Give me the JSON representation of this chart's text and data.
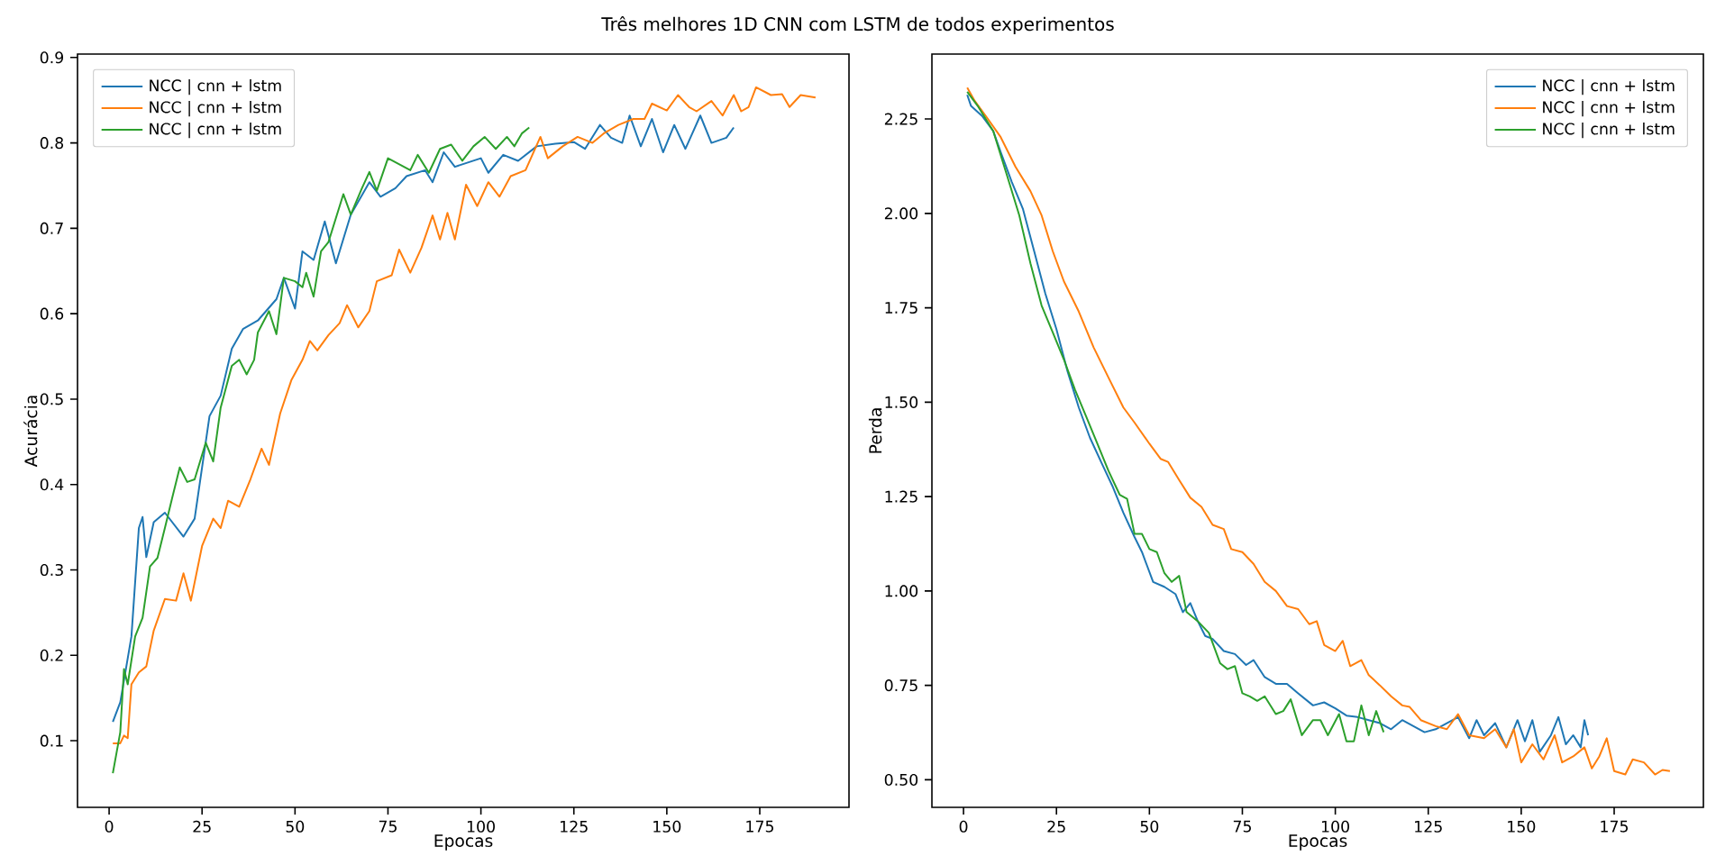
{
  "chart_data": [
    {
      "type": "line",
      "title": "Três melhores 1D CNN com LSTM de todos experimentos",
      "xlabel": "Epocas",
      "ylabel": "Acurácia",
      "legend": "top left",
      "grid": false,
      "xlim": [
        -8.5,
        199
      ],
      "ylim": [
        0.022,
        0.904
      ],
      "xticks": [
        0,
        25,
        50,
        75,
        100,
        125,
        150,
        175
      ],
      "yticks": [
        {
          "value": 0.1,
          "label": "0.1"
        },
        {
          "value": 0.2,
          "label": "0.2"
        },
        {
          "value": 0.3,
          "label": "0.3"
        },
        {
          "value": 0.4,
          "label": "0.4"
        },
        {
          "value": 0.5,
          "label": "0.5"
        },
        {
          "value": 0.6,
          "label": "0.6"
        },
        {
          "value": 0.7,
          "label": "0.7"
        },
        {
          "value": 0.8,
          "label": "0.8"
        },
        {
          "value": 0.9,
          "label": "0.9"
        }
      ],
      "series": [
        {
          "name": "NCC |  cnn + lstm",
          "color": "#1f77b4",
          "x": [
            1,
            3,
            6,
            8,
            9,
            10,
            12,
            15,
            20,
            23,
            27,
            30,
            33,
            36,
            40,
            45,
            47,
            50,
            52,
            55,
            58,
            61,
            65,
            70,
            73,
            77,
            80,
            85,
            87,
            90,
            93,
            100,
            102,
            106,
            110,
            115,
            120,
            125,
            128,
            132,
            135,
            138,
            140,
            143,
            146,
            149,
            152,
            155,
            159,
            162,
            166,
            168
          ],
          "values": [
            0.122,
            0.145,
            0.222,
            0.349,
            0.362,
            0.315,
            0.356,
            0.367,
            0.339,
            0.36,
            0.48,
            0.504,
            0.559,
            0.582,
            0.592,
            0.617,
            0.642,
            0.606,
            0.673,
            0.663,
            0.708,
            0.659,
            0.716,
            0.754,
            0.737,
            0.747,
            0.761,
            0.768,
            0.754,
            0.789,
            0.772,
            0.782,
            0.765,
            0.786,
            0.779,
            0.796,
            0.799,
            0.801,
            0.793,
            0.821,
            0.806,
            0.8,
            0.832,
            0.796,
            0.828,
            0.789,
            0.821,
            0.793,
            0.832,
            0.8,
            0.806,
            0.818
          ]
        },
        {
          "name": "NCC |  cnn + lstm",
          "color": "#ff7f0e",
          "x": [
            1,
            3,
            4,
            5,
            6,
            8,
            10,
            12,
            15,
            18,
            20,
            22,
            25,
            28,
            30,
            32,
            35,
            38,
            41,
            43,
            46,
            49,
            52,
            54,
            56,
            59,
            62,
            64,
            67,
            70,
            72,
            76,
            78,
            81,
            84,
            87,
            89,
            91,
            93,
            96,
            99,
            102,
            105,
            108,
            112,
            116,
            118,
            122,
            126,
            130,
            133,
            137,
            141,
            144,
            146,
            150,
            153,
            156,
            158,
            162,
            165,
            168,
            170,
            172,
            174,
            178,
            181,
            183,
            186,
            190
          ],
          "values": [
            0.097,
            0.097,
            0.106,
            0.103,
            0.166,
            0.18,
            0.187,
            0.229,
            0.266,
            0.264,
            0.296,
            0.264,
            0.328,
            0.36,
            0.349,
            0.381,
            0.374,
            0.406,
            0.442,
            0.423,
            0.483,
            0.522,
            0.546,
            0.568,
            0.557,
            0.575,
            0.589,
            0.61,
            0.584,
            0.603,
            0.638,
            0.645,
            0.675,
            0.648,
            0.677,
            0.715,
            0.687,
            0.718,
            0.687,
            0.751,
            0.726,
            0.754,
            0.737,
            0.761,
            0.768,
            0.807,
            0.782,
            0.796,
            0.807,
            0.8,
            0.811,
            0.821,
            0.828,
            0.828,
            0.846,
            0.838,
            0.856,
            0.842,
            0.837,
            0.849,
            0.832,
            0.856,
            0.837,
            0.842,
            0.865,
            0.856,
            0.857,
            0.842,
            0.856,
            0.853
          ]
        },
        {
          "name": "NCC |  cnn + lstm",
          "color": "#2ca02c",
          "x": [
            1,
            3,
            4,
            5,
            7,
            9,
            11,
            13,
            15,
            17,
            19,
            21,
            23,
            26,
            28,
            30,
            33,
            35,
            37,
            39,
            40,
            43,
            45,
            47,
            50,
            52,
            53,
            55,
            57,
            59,
            61,
            63,
            65,
            68,
            70,
            72,
            75,
            78,
            81,
            83,
            86,
            89,
            92,
            95,
            98,
            101,
            104,
            107,
            109,
            111,
            113
          ],
          "values": [
            0.062,
            0.11,
            0.184,
            0.166,
            0.222,
            0.244,
            0.304,
            0.314,
            0.349,
            0.385,
            0.42,
            0.403,
            0.406,
            0.449,
            0.427,
            0.49,
            0.539,
            0.546,
            0.529,
            0.546,
            0.578,
            0.603,
            0.576,
            0.642,
            0.638,
            0.631,
            0.648,
            0.62,
            0.673,
            0.684,
            0.712,
            0.74,
            0.716,
            0.747,
            0.766,
            0.744,
            0.782,
            0.775,
            0.768,
            0.786,
            0.765,
            0.793,
            0.798,
            0.779,
            0.796,
            0.807,
            0.793,
            0.807,
            0.796,
            0.811,
            0.818
          ]
        }
      ]
    },
    {
      "type": "line",
      "xlabel": "Epocas",
      "ylabel": "Perda",
      "legend": "top right",
      "grid": false,
      "xlim": [
        -8.5,
        199
      ],
      "ylim": [
        0.427,
        2.422
      ],
      "xticks": [
        0,
        25,
        50,
        75,
        100,
        125,
        150,
        175
      ],
      "yticks": [
        {
          "value": 0.5,
          "label": "0.50"
        },
        {
          "value": 0.75,
          "label": "0.75"
        },
        {
          "value": 1.0,
          "label": "1.00"
        },
        {
          "value": 1.25,
          "label": "1.25"
        },
        {
          "value": 1.5,
          "label": "1.50"
        },
        {
          "value": 1.75,
          "label": "1.75"
        },
        {
          "value": 2.0,
          "label": "2.00"
        },
        {
          "value": 2.25,
          "label": "2.25"
        }
      ],
      "series": [
        {
          "name": "NCC |  cnn + lstm",
          "color": "#1f77b4",
          "x": [
            1,
            2,
            5,
            8,
            10,
            13,
            16,
            19,
            22,
            25,
            28,
            31,
            34,
            37,
            40,
            43,
            46,
            48,
            51,
            54,
            57,
            59,
            61,
            63,
            65,
            67,
            70,
            73,
            76,
            78,
            81,
            84,
            87,
            90,
            94,
            97,
            100,
            103,
            106,
            109,
            112,
            115,
            118,
            121,
            124,
            127,
            130,
            133,
            136,
            138,
            140,
            143,
            146,
            149,
            151,
            153,
            155,
            158,
            160,
            162,
            164,
            166,
            167,
            168
          ],
          "values": [
            2.314,
            2.285,
            2.258,
            2.218,
            2.162,
            2.083,
            2.011,
            1.9,
            1.788,
            1.693,
            1.581,
            1.486,
            1.406,
            1.342,
            1.279,
            1.207,
            1.143,
            1.103,
            1.024,
            1.011,
            0.992,
            0.944,
            0.968,
            0.92,
            0.881,
            0.873,
            0.841,
            0.833,
            0.804,
            0.817,
            0.772,
            0.754,
            0.754,
            0.729,
            0.697,
            0.705,
            0.689,
            0.67,
            0.666,
            0.658,
            0.65,
            0.634,
            0.658,
            0.642,
            0.626,
            0.634,
            0.65,
            0.666,
            0.61,
            0.658,
            0.618,
            0.65,
            0.586,
            0.658,
            0.602,
            0.658,
            0.574,
            0.618,
            0.666,
            0.594,
            0.618,
            0.586,
            0.658,
            0.618
          ]
        },
        {
          "name": "NCC |  cnn + lstm",
          "color": "#ff7f0e",
          "x": [
            1,
            3,
            6,
            10,
            14,
            18,
            21,
            24,
            27,
            31,
            35,
            39,
            43,
            46,
            50,
            53,
            55,
            58,
            61,
            64,
            67,
            70,
            72,
            75,
            78,
            81,
            84,
            87,
            90,
            93,
            95,
            97,
            100,
            102,
            104,
            107,
            109,
            112,
            115,
            118,
            120,
            123,
            127,
            130,
            133,
            136,
            140,
            143,
            146,
            148,
            150,
            153,
            156,
            159,
            161,
            164,
            167,
            169,
            171,
            173,
            175,
            178,
            180,
            183,
            186,
            188,
            190
          ],
          "values": [
            2.333,
            2.298,
            2.258,
            2.202,
            2.123,
            2.059,
            1.995,
            1.9,
            1.82,
            1.74,
            1.645,
            1.565,
            1.486,
            1.446,
            1.39,
            1.35,
            1.342,
            1.294,
            1.247,
            1.223,
            1.175,
            1.164,
            1.111,
            1.103,
            1.072,
            1.024,
            1.0,
            0.96,
            0.952,
            0.912,
            0.92,
            0.857,
            0.841,
            0.868,
            0.801,
            0.817,
            0.777,
            0.75,
            0.721,
            0.697,
            0.693,
            0.658,
            0.642,
            0.634,
            0.674,
            0.618,
            0.61,
            0.634,
            0.586,
            0.634,
            0.546,
            0.594,
            0.554,
            0.618,
            0.546,
            0.562,
            0.586,
            0.53,
            0.562,
            0.61,
            0.523,
            0.514,
            0.554,
            0.546,
            0.514,
            0.526,
            0.523
          ]
        },
        {
          "name": "NCC |  cnn + lstm",
          "color": "#2ca02c",
          "x": [
            1,
            4,
            8,
            12,
            15,
            18,
            21,
            24,
            27,
            30,
            33,
            36,
            39,
            42,
            44,
            46,
            48,
            50,
            52,
            54,
            56,
            58,
            60,
            63,
            66,
            69,
            71,
            73,
            75,
            77,
            79,
            81,
            84,
            86,
            88,
            91,
            94,
            96,
            98,
            101,
            103,
            105,
            107,
            109,
            111,
            113
          ],
          "values": [
            2.322,
            2.282,
            2.218,
            2.091,
            1.995,
            1.868,
            1.756,
            1.685,
            1.613,
            1.533,
            1.462,
            1.39,
            1.318,
            1.255,
            1.244,
            1.151,
            1.151,
            1.111,
            1.103,
            1.048,
            1.024,
            1.04,
            0.944,
            0.92,
            0.889,
            0.809,
            0.793,
            0.801,
            0.729,
            0.721,
            0.709,
            0.721,
            0.674,
            0.682,
            0.713,
            0.618,
            0.658,
            0.658,
            0.618,
            0.674,
            0.602,
            0.602,
            0.697,
            0.618,
            0.682,
            0.626
          ]
        }
      ]
    }
  ]
}
